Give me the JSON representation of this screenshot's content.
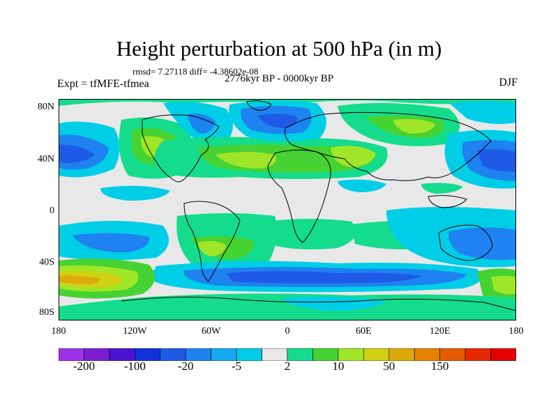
{
  "title": "Height perturbation at 500 hPa (in m)",
  "stats": "rmsd= 7.27118 diff= -4.38602e-08",
  "experiment": "Expt = tfMFE-tfmea",
  "period": "2776kyr BP - 0000kyr BP",
  "season": "DJF",
  "axes": {
    "y_ticks": [
      "80N",
      "40N",
      "0",
      "40S",
      "80S"
    ],
    "x_ticks": [
      "180",
      "120W",
      "60W",
      "0",
      "60E",
      "120E",
      "180"
    ]
  },
  "colorbar": {
    "colors": [
      "#9b32e6",
      "#7a1ed2",
      "#4b14d2",
      "#1432dc",
      "#1e5ae6",
      "#1e82f0",
      "#14aaf0",
      "#00cde6",
      "#e8e8e8",
      "#14dc8c",
      "#46d232",
      "#a0e628",
      "#d2d214",
      "#dcaa0a",
      "#e68200",
      "#e65a00",
      "#e62800",
      "#e60000"
    ],
    "labels": [
      "-200",
      "-100",
      "-20",
      "-5",
      "2",
      "10",
      "50",
      "150"
    ]
  },
  "palette": {
    "neutral": "#e8e8e8",
    "lightblue": "#00cde6",
    "blue": "#1e82f0",
    "darkblue": "#1e5ae6",
    "green": "#14dc8c",
    "lime": "#a0e628",
    "olive": "#d2d214",
    "orange": "#dcaa0a",
    "coast": "#000000"
  }
}
